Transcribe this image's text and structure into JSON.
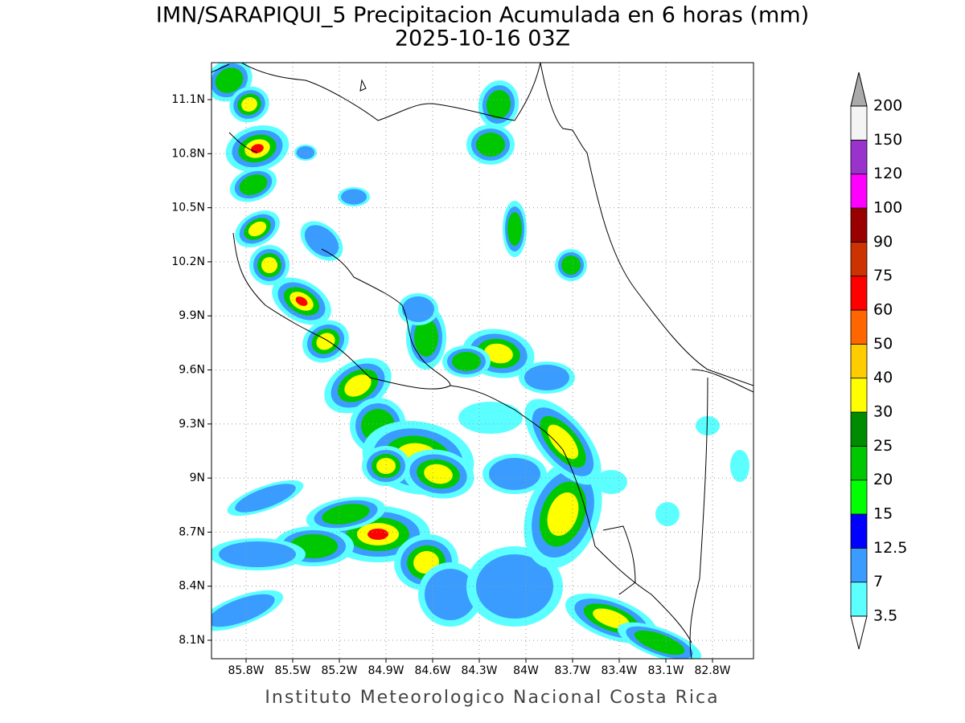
{
  "title": "IMN/SARAPIQUI_5 Precipitacion Acumulada en 6 horas (mm)",
  "subtitle": "2025-10-16 03Z",
  "footer": "Instituto Meteorologico Nacional Costa Rica",
  "map": {
    "lat_ticks": [
      {
        "value": 11.1,
        "label": "11.1N"
      },
      {
        "value": 10.8,
        "label": "10.8N"
      },
      {
        "value": 10.5,
        "label": "10.5N"
      },
      {
        "value": 10.2,
        "label": "10.2N"
      },
      {
        "value": 9.9,
        "label": "9.9N"
      },
      {
        "value": 9.6,
        "label": "9.6N"
      },
      {
        "value": 9.3,
        "label": "9.3N"
      },
      {
        "value": 9,
        "label": "9N"
      },
      {
        "value": 8.7,
        "label": "8.7N"
      },
      {
        "value": 8.4,
        "label": "8.4N"
      },
      {
        "value": 8.1,
        "label": "8.1N"
      }
    ],
    "lon_ticks": [
      {
        "value": -85.8,
        "label": "85.8W"
      },
      {
        "value": -85.5,
        "label": "85.5W"
      },
      {
        "value": -85.2,
        "label": "85.2W"
      },
      {
        "value": -84.9,
        "label": "84.9W"
      },
      {
        "value": -84.6,
        "label": "84.6W"
      },
      {
        "value": -84.3,
        "label": "84.3W"
      },
      {
        "value": -84,
        "label": "84W"
      },
      {
        "value": -83.7,
        "label": "83.7W"
      },
      {
        "value": -83.4,
        "label": "83.4W"
      },
      {
        "value": -83.1,
        "label": "83.1W"
      },
      {
        "value": -82.8,
        "label": "82.8W"
      }
    ]
  },
  "colorbar": {
    "levels": [
      3.5,
      7,
      12.5,
      15,
      20,
      25,
      30,
      40,
      50,
      60,
      75,
      90,
      100,
      120,
      150,
      200
    ],
    "colors": [
      "#5cffff",
      "#3a9cff",
      "#0000ff",
      "#00ff00",
      "#00c800",
      "#008c00",
      "#ffff00",
      "#ffcc00",
      "#ff6600",
      "#ff0000",
      "#cc3300",
      "#990000",
      "#ff00ff",
      "#9933cc",
      "#f4f4f4"
    ],
    "below_color": "#ffffff",
    "above_color": "#aaaaaa"
  }
}
